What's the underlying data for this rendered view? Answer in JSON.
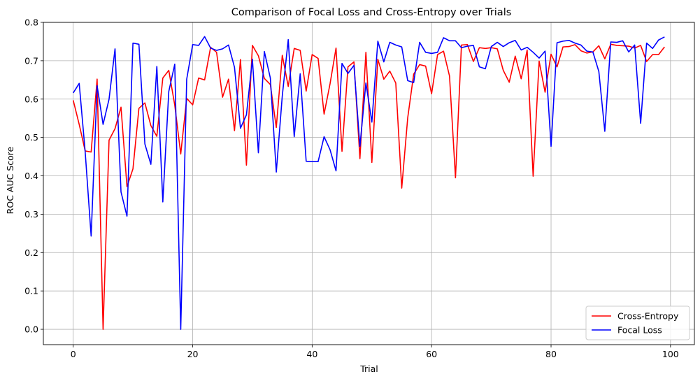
{
  "chart_data": {
    "type": "line",
    "title": "Comparison of Focal Loss and Cross-Entropy over Trials",
    "xlabel": "Trial",
    "ylabel": "ROC AUC Score",
    "xlim": [
      -5,
      104
    ],
    "ylim": [
      -0.04,
      0.8
    ],
    "xticks": [
      0,
      20,
      40,
      60,
      80,
      100
    ],
    "yticks": [
      0.0,
      0.1,
      0.2,
      0.3,
      0.4,
      0.5,
      0.6,
      0.7,
      0.8
    ],
    "xtick_labels": [
      "0",
      "20",
      "40",
      "60",
      "80",
      "100"
    ],
    "ytick_labels": [
      "0.0",
      "0.1",
      "0.2",
      "0.3",
      "0.4",
      "0.5",
      "0.6",
      "0.7",
      "0.8"
    ],
    "grid": true,
    "legend_position": "bottom-right",
    "x": [
      0,
      1,
      2,
      3,
      4,
      5,
      6,
      7,
      8,
      9,
      10,
      11,
      12,
      13,
      14,
      15,
      16,
      17,
      18,
      19,
      20,
      21,
      22,
      23,
      24,
      25,
      26,
      27,
      28,
      29,
      30,
      31,
      32,
      33,
      34,
      35,
      36,
      37,
      38,
      39,
      40,
      41,
      42,
      43,
      44,
      45,
      46,
      47,
      48,
      49,
      50,
      51,
      52,
      53,
      54,
      55,
      56,
      57,
      58,
      59,
      60,
      61,
      62,
      63,
      64,
      65,
      66,
      67,
      68,
      69,
      70,
      71,
      72,
      73,
      74,
      75,
      76,
      77,
      78,
      79,
      80,
      81,
      82,
      83,
      84,
      85,
      86,
      87,
      88,
      89,
      90,
      91,
      92,
      93,
      94,
      95,
      96,
      97,
      98,
      99
    ],
    "series": [
      {
        "name": "Cross-Entropy",
        "color": "#ff0000",
        "values": [
          0.597,
          0.534,
          0.465,
          0.462,
          0.652,
          0.0,
          0.493,
          0.523,
          0.579,
          0.372,
          0.418,
          0.576,
          0.59,
          0.531,
          0.503,
          0.655,
          0.675,
          0.584,
          0.457,
          0.602,
          0.585,
          0.655,
          0.65,
          0.735,
          0.722,
          0.605,
          0.652,
          0.518,
          0.703,
          0.428,
          0.74,
          0.713,
          0.654,
          0.638,
          0.526,
          0.714,
          0.633,
          0.732,
          0.727,
          0.621,
          0.716,
          0.706,
          0.561,
          0.64,
          0.733,
          0.464,
          0.684,
          0.697,
          0.445,
          0.722,
          0.435,
          0.704,
          0.652,
          0.673,
          0.642,
          0.368,
          0.551,
          0.665,
          0.69,
          0.686,
          0.614,
          0.716,
          0.725,
          0.66,
          0.395,
          0.741,
          0.742,
          0.698,
          0.734,
          0.732,
          0.734,
          0.731,
          0.675,
          0.644,
          0.712,
          0.653,
          0.728,
          0.399,
          0.699,
          0.618,
          0.717,
          0.684,
          0.736,
          0.737,
          0.742,
          0.726,
          0.72,
          0.723,
          0.739,
          0.705,
          0.743,
          0.74,
          0.739,
          0.738,
          0.733,
          0.74,
          0.698,
          0.716,
          0.716,
          0.736
        ]
      },
      {
        "name": "Focal Loss",
        "color": "#0000ff",
        "values": [
          0.616,
          0.641,
          0.463,
          0.243,
          0.635,
          0.534,
          0.6,
          0.731,
          0.358,
          0.295,
          0.746,
          0.743,
          0.483,
          0.43,
          0.685,
          0.332,
          0.62,
          0.691,
          0.0,
          0.652,
          0.742,
          0.74,
          0.763,
          0.733,
          0.727,
          0.731,
          0.741,
          0.683,
          0.524,
          0.559,
          0.704,
          0.46,
          0.724,
          0.655,
          0.41,
          0.608,
          0.755,
          0.502,
          0.666,
          0.438,
          0.437,
          0.437,
          0.502,
          0.468,
          0.413,
          0.693,
          0.667,
          0.688,
          0.477,
          0.642,
          0.54,
          0.751,
          0.697,
          0.748,
          0.741,
          0.736,
          0.648,
          0.643,
          0.748,
          0.722,
          0.719,
          0.722,
          0.76,
          0.752,
          0.752,
          0.734,
          0.738,
          0.74,
          0.684,
          0.679,
          0.737,
          0.748,
          0.737,
          0.747,
          0.753,
          0.728,
          0.735,
          0.722,
          0.707,
          0.725,
          0.477,
          0.747,
          0.751,
          0.753,
          0.746,
          0.741,
          0.725,
          0.723,
          0.672,
          0.516,
          0.749,
          0.748,
          0.752,
          0.723,
          0.741,
          0.537,
          0.746,
          0.732,
          0.754,
          0.762
        ]
      }
    ]
  }
}
